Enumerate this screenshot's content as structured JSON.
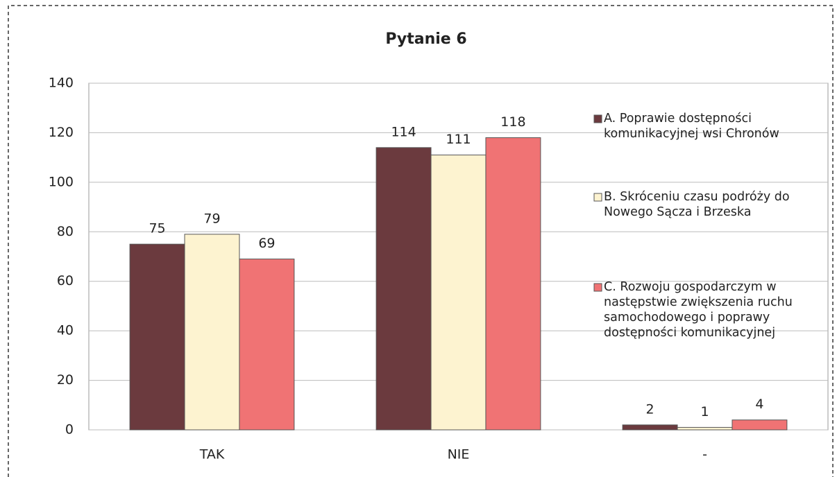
{
  "chart_data": {
    "type": "bar",
    "title": "Pytanie 6",
    "categories": [
      "TAK",
      "NIE",
      "-"
    ],
    "series": [
      {
        "name": "A. Poprawie dostępności komunikacyjnej wsi Chronów",
        "color": "#6b3a3e",
        "values": [
          75,
          114,
          2
        ]
      },
      {
        "name": "B. Skróceniu czasu podróży do Nowego Sącza i Brzeska",
        "color": "#fdf3d0",
        "values": [
          79,
          111,
          1
        ]
      },
      {
        "name": "C. Rozwoju gospodarczym w następstwie zwiększenia ruchu samochodowego i poprawy dostępności komunikacyjnej",
        "color": "#f07374",
        "values": [
          69,
          118,
          4
        ]
      }
    ],
    "ylim": [
      0,
      140
    ],
    "yticks": [
      0,
      20,
      40,
      60,
      80,
      100,
      120,
      140
    ],
    "grid": true,
    "legend": "right"
  }
}
